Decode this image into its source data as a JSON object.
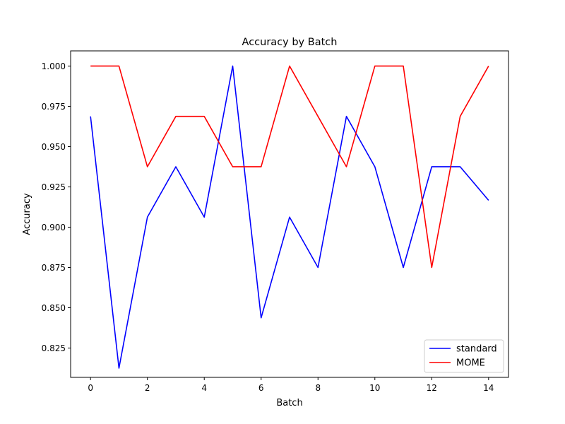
{
  "chart_data": {
    "type": "line",
    "title": "Accuracy by Batch",
    "xlabel": "Batch",
    "ylabel": "Accuracy",
    "x": [
      0,
      1,
      2,
      3,
      4,
      5,
      6,
      7,
      8,
      9,
      10,
      11,
      12,
      13,
      14
    ],
    "xlim": [
      -0.7,
      14.7
    ],
    "ylim": [
      0.8068,
      1.0094
    ],
    "xticks": [
      0,
      2,
      4,
      6,
      8,
      10,
      12,
      14
    ],
    "xtick_labels": [
      "0",
      "2",
      "4",
      "6",
      "8",
      "10",
      "12",
      "14"
    ],
    "yticks": [
      0.825,
      0.85,
      0.875,
      0.9,
      0.925,
      0.95,
      0.975,
      1.0
    ],
    "ytick_labels": [
      "0.825",
      "0.850",
      "0.875",
      "0.900",
      "0.925",
      "0.950",
      "0.975",
      "1.000"
    ],
    "grid": false,
    "legend_position": "bottom-right",
    "series": [
      {
        "name": "standard",
        "color": "#0000ff",
        "values": [
          0.96875,
          0.8125,
          0.90625,
          0.9375,
          0.90625,
          1.0,
          0.84375,
          0.90625,
          0.875,
          0.96875,
          0.9375,
          0.875,
          0.9375,
          0.9375,
          0.916667
        ]
      },
      {
        "name": "MOME",
        "color": "#ff0000",
        "values": [
          1.0,
          1.0,
          0.9375,
          0.96875,
          0.96875,
          0.9375,
          0.9375,
          1.0,
          0.96875,
          0.9375,
          1.0,
          1.0,
          0.875,
          0.96875,
          1.0
        ]
      }
    ]
  }
}
